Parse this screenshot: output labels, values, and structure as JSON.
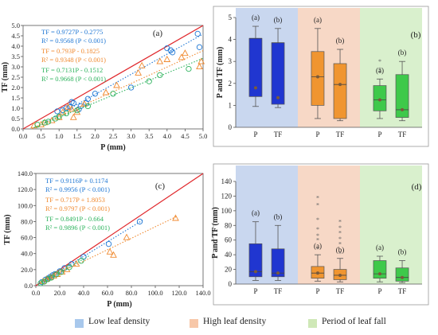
{
  "chart_data": [
    {
      "type": "scatter",
      "panel_label": "(a)",
      "xlabel": "P (mm)",
      "ylabel": "TF (mm)",
      "xlim": [
        0,
        5
      ],
      "ylim": [
        0,
        5
      ],
      "xticks": [
        "0.0",
        "0.5",
        "1.0",
        "1.5",
        "2.0",
        "2.5",
        "3.0",
        "3.5",
        "4.0",
        "4.5",
        "5.0"
      ],
      "yticks": [
        "0.0",
        "0.5",
        "1.0",
        "1.5",
        "2.0",
        "2.5",
        "3.0",
        "3.5",
        "4.0",
        "4.5",
        "5.0"
      ],
      "reference_line": "1:1",
      "series": [
        {
          "name": "Low leaf density",
          "color": "#1f77d4",
          "marker": "circle",
          "equation": "TF = 0.9727P - 0.2775",
          "r2": "R² = 0.9568 (P < 0.001)",
          "fit": {
            "slope": 0.9727,
            "intercept": -0.2775,
            "xrange": [
              0.6,
              5.0
            ]
          },
          "points": [
            [
              0.95,
              0.85
            ],
            [
              1.1,
              0.9
            ],
            [
              1.2,
              1.0
            ],
            [
              1.3,
              1.05
            ],
            [
              1.35,
              1.3
            ],
            [
              1.4,
              1.25
            ],
            [
              1.55,
              0.95
            ],
            [
              1.6,
              1.1
            ],
            [
              1.75,
              1.25
            ],
            [
              1.8,
              1.45
            ],
            [
              2.0,
              1.7
            ],
            [
              3.0,
              2.0
            ],
            [
              4.0,
              3.9
            ],
            [
              4.1,
              3.8
            ],
            [
              4.15,
              3.7
            ],
            [
              4.85,
              4.6
            ],
            [
              4.9,
              3.95
            ]
          ]
        },
        {
          "name": "High leaf density",
          "color": "#f08a30",
          "marker": "triangle",
          "equation": "TF = 0.793P - 0.1825",
          "r2": "R² = 0.9348 (P < 0.001)",
          "fit": {
            "slope": 0.793,
            "intercept": -0.1825,
            "xrange": [
              0.25,
              5.0
            ]
          },
          "points": [
            [
              0.3,
              0.15
            ],
            [
              0.5,
              0.2
            ],
            [
              0.6,
              0.3
            ],
            [
              0.8,
              0.4
            ],
            [
              1.0,
              0.55
            ],
            [
              1.1,
              0.8
            ],
            [
              1.25,
              1.05
            ],
            [
              1.35,
              0.95
            ],
            [
              1.4,
              0.55
            ],
            [
              1.5,
              0.8
            ],
            [
              1.7,
              1.2
            ],
            [
              2.3,
              1.75
            ],
            [
              2.6,
              2.1
            ],
            [
              3.2,
              2.7
            ],
            [
              3.3,
              3.05
            ],
            [
              3.8,
              3.25
            ],
            [
              4.0,
              3.35
            ],
            [
              4.4,
              3.45
            ],
            [
              4.5,
              3.65
            ],
            [
              4.9,
              3.0
            ],
            [
              4.95,
              3.25
            ]
          ]
        },
        {
          "name": "Period of leaf fall",
          "color": "#2db35d",
          "marker": "circle",
          "equation": "TF = 0.7131P - 0.1512",
          "r2": "R² = 0.9668 (P < 0.001)",
          "fit": {
            "slope": 0.7131,
            "intercept": -0.1512,
            "xrange": [
              0.3,
              5.0
            ]
          },
          "points": [
            [
              0.4,
              0.2
            ],
            [
              0.6,
              0.3
            ],
            [
              0.7,
              0.35
            ],
            [
              0.9,
              0.5
            ],
            [
              1.0,
              0.6
            ],
            [
              1.2,
              0.75
            ],
            [
              1.5,
              0.9
            ],
            [
              1.8,
              1.1
            ],
            [
              2.5,
              1.7
            ],
            [
              3.5,
              2.3
            ],
            [
              3.8,
              2.6
            ],
            [
              4.6,
              2.9
            ]
          ]
        }
      ]
    },
    {
      "type": "box",
      "panel_label": "(b)",
      "ylabel": "P and TF (mm)",
      "ylim": [
        0,
        5
      ],
      "yticks": [
        "0",
        "1",
        "2",
        "3",
        "4",
        "5"
      ],
      "groups": [
        {
          "name": "Low leaf density",
          "bg": "#c9d7ef",
          "boxes": [
            {
              "label": "P",
              "sig": "(a)",
              "color": "#2036d0",
              "whisker": [
                0.95,
                4.6
              ],
              "q1": 1.4,
              "q3": 4.05,
              "median": 4.05,
              "mean": 1.8,
              "outliers": []
            },
            {
              "label": "TF",
              "sig": "(b)",
              "color": "#2036d0",
              "whisker": [
                0.9,
                4.5
              ],
              "q1": 1.05,
              "q3": 3.85,
              "median": 3.85,
              "mean": 1.35,
              "outliers": []
            }
          ]
        },
        {
          "name": "High leaf density",
          "bg": "#f7d8c6",
          "boxes": [
            {
              "label": "P",
              "sig": "(a)",
              "color": "#f09530",
              "whisker": [
                0.4,
                4.5
              ],
              "q1": 1.0,
              "q3": 3.45,
              "median": 2.3,
              "mean": 2.3,
              "outliers": []
            },
            {
              "label": "TF",
              "sig": "(b)",
              "color": "#f09530",
              "whisker": [
                0.3,
                3.55
              ],
              "q1": 0.4,
              "q3": 2.9,
              "median": 1.95,
              "mean": 1.95,
              "outliers": []
            }
          ]
        },
        {
          "name": "Period of leaf fall",
          "bg": "#d9f0cd",
          "boxes": [
            {
              "label": "P",
              "sig": "(a)",
              "color": "#3ec94a",
              "whisker": [
                0.4,
                2.2
              ],
              "q1": 0.75,
              "q3": 1.9,
              "median": 1.25,
              "mean": 1.25,
              "outliers": [
                2.5,
                2.65,
                3.0
              ]
            },
            {
              "label": "TF",
              "sig": "(b)",
              "color": "#3ec94a",
              "whisker": [
                0.3,
                3.0
              ],
              "q1": 0.45,
              "q3": 2.4,
              "median": 0.8,
              "mean": 0.8,
              "outliers": []
            }
          ]
        }
      ]
    },
    {
      "type": "scatter",
      "panel_label": "(c)",
      "xlabel": "P (mm)",
      "ylabel": "TF (mm)",
      "xlim": [
        0,
        140
      ],
      "ylim": [
        0,
        140
      ],
      "xticks": [
        "0.0",
        "20.0",
        "40.0",
        "60.0",
        "80.0",
        "100.0",
        "120.0",
        "140.0"
      ],
      "yticks": [
        "0.0",
        "20.0",
        "40.0",
        "60.0",
        "80.0",
        "100.0",
        "120.0",
        "140.0"
      ],
      "reference_line": "1:1",
      "series": [
        {
          "name": "Low leaf density",
          "color": "#1f77d4",
          "marker": "circle",
          "equation": "TF = 0.9116P + 0.1174",
          "r2": "R² = 0.9956 (P < 0.001)",
          "fit": {
            "slope": 0.9116,
            "intercept": 0.1174,
            "xrange": [
              3,
              90
            ]
          },
          "points": [
            [
              5,
              4.5
            ],
            [
              8,
              7.5
            ],
            [
              10,
              9
            ],
            [
              12,
              11
            ],
            [
              14,
              13
            ],
            [
              16,
              14.5
            ],
            [
              20,
              18
            ],
            [
              24,
              22
            ],
            [
              30,
              27
            ],
            [
              40,
              36
            ],
            [
              61,
              52
            ],
            [
              87,
              80
            ]
          ]
        },
        {
          "name": "High leaf density",
          "color": "#f08a30",
          "marker": "triangle",
          "equation": "TF = 0.717P + 1.8053",
          "r2": "R² = 0.9797 (P < 0.001)",
          "fit": {
            "slope": 0.717,
            "intercept": 1.8053,
            "xrange": [
              3,
              118
            ]
          },
          "points": [
            [
              6,
              5
            ],
            [
              9,
              8
            ],
            [
              12,
              10
            ],
            [
              15,
              12
            ],
            [
              18,
              14
            ],
            [
              22,
              17
            ],
            [
              26,
              20
            ],
            [
              34,
              27
            ],
            [
              62,
              42
            ],
            [
              65,
              38
            ],
            [
              76,
              60
            ],
            [
              117,
              84
            ]
          ]
        },
        {
          "name": "Period of leaf fall",
          "color": "#2db35d",
          "marker": "circle",
          "equation": "TF = 0.8491P - 0.664",
          "r2": "R² = 0.9896 (P < 0.001)",
          "fit": {
            "slope": 0.8491,
            "intercept": -0.664,
            "xrange": [
              3,
              45
            ]
          },
          "points": [
            [
              4,
              3
            ],
            [
              7,
              5
            ],
            [
              10,
              8
            ],
            [
              13,
              10
            ],
            [
              17,
              14
            ],
            [
              21,
              17
            ],
            [
              28,
              23
            ],
            [
              38,
              31
            ]
          ]
        }
      ]
    },
    {
      "type": "box",
      "panel_label": "(d)",
      "ylabel": "P and TF (mm)",
      "ylim": [
        0,
        140
      ],
      "yticks": [
        "0",
        "20",
        "40",
        "60",
        "80",
        "100",
        "120",
        "140"
      ],
      "groups": [
        {
          "name": "Low leaf density",
          "bg": "#c9d7ef",
          "boxes": [
            {
              "label": "P",
              "sig": "(a)",
              "color": "#2036d0",
              "whisker": [
                5,
                85
              ],
              "q1": 10,
              "q3": 55,
              "median": 17,
              "mean": 17,
              "outliers": []
            },
            {
              "label": "TF",
              "sig": "(b)",
              "color": "#2036d0",
              "whisker": [
                5,
                80
              ],
              "q1": 10,
              "q3": 48,
              "median": 15,
              "mean": 15,
              "outliers": []
            }
          ]
        },
        {
          "name": "High leaf density",
          "bg": "#f7d8c6",
          "boxes": [
            {
              "label": "P",
              "sig": "(a)",
              "color": "#f09530",
              "whisker": [
                4,
                40
              ],
              "q1": 8,
              "q3": 24,
              "median": 15,
              "mean": 15,
              "outliers": [
                48,
                60,
                66,
                75,
                88,
                108,
                118
              ]
            },
            {
              "label": "TF",
              "sig": "(b)",
              "color": "#f09530",
              "whisker": [
                3,
                35
              ],
              "q1": 6,
              "q3": 20,
              "median": 12,
              "mean": 12,
              "outliers": [
                42,
                55,
                62,
                70,
                77,
                85
              ]
            }
          ]
        },
        {
          "name": "Period of leaf fall",
          "bg": "#d9f0cd",
          "boxes": [
            {
              "label": "P",
              "sig": "(a)",
              "color": "#3ec94a",
              "whisker": [
                3,
                38
              ],
              "q1": 8,
              "q3": 32,
              "median": 14,
              "mean": 14,
              "outliers": []
            },
            {
              "label": "TF",
              "sig": "(b)",
              "color": "#3ec94a",
              "whisker": [
                2,
                32
              ],
              "q1": 4,
              "q3": 22,
              "median": 9,
              "mean": 9,
              "outliers": []
            }
          ]
        }
      ]
    }
  ],
  "legend": [
    {
      "label": "Low leaf density",
      "color": "#a8c8ec"
    },
    {
      "label": "High leaf density",
      "color": "#f7c7a8"
    },
    {
      "label": "Period of leaf fall",
      "color": "#cfe8b7"
    }
  ]
}
